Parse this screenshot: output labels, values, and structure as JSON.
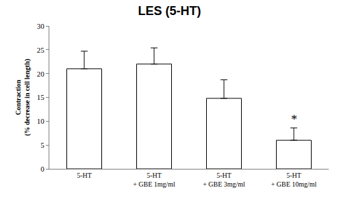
{
  "chart_data": {
    "type": "bar",
    "title": "LES (5-HT)",
    "y_label": "Contraction\n(% decrease in cell length)",
    "categories": [
      "5-HT",
      "5-HT\n+ GBE 1mg/ml",
      "5-HT\n+ GBE 3mg/ml",
      "5-HT\n+ GBE 10mg/ml"
    ],
    "values": [
      21,
      22,
      14.8,
      6
    ],
    "errors": [
      3.7,
      3.4,
      3.9,
      2.6
    ],
    "colors": [
      "#ffffff",
      "#ffffff",
      "#ffffff",
      "#ffffff"
    ],
    "annotations": [
      {
        "category": "5-HT\n+ GBE 10mg/ml",
        "text": "*"
      }
    ],
    "ylim": [
      0,
      30
    ],
    "yticks": [
      0,
      5,
      10,
      15,
      20,
      25,
      30
    ],
    "grid": false
  }
}
